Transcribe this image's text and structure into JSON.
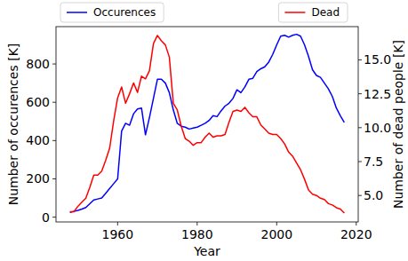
{
  "chart_data": {
    "type": "line",
    "x_label": "Year",
    "y_label": "Number of occurences [K]",
    "y2_label": "Number of dead people [K]",
    "x": [
      1948,
      1949,
      1950,
      1951,
      1952,
      1953,
      1954,
      1955,
      1956,
      1957,
      1958,
      1959,
      1960,
      1961,
      1962,
      1963,
      1964,
      1965,
      1966,
      1967,
      1968,
      1969,
      1970,
      1971,
      1972,
      1973,
      1974,
      1975,
      1976,
      1977,
      1978,
      1979,
      1980,
      1981,
      1982,
      1983,
      1984,
      1985,
      1986,
      1987,
      1988,
      1989,
      1990,
      1991,
      1992,
      1993,
      1994,
      1995,
      1996,
      1997,
      1998,
      1999,
      2000,
      2001,
      2002,
      2003,
      2004,
      2005,
      2006,
      2007,
      2008,
      2009,
      2010,
      2011,
      2012,
      2013,
      2014,
      2015,
      2016,
      2017
    ],
    "series": [
      {
        "name": "Occurences",
        "color": "#0000ff",
        "values": [
          25,
          30,
          35,
          42,
          50,
          70,
          90,
          95,
          100,
          125,
          150,
          175,
          200,
          450,
          490,
          480,
          540,
          565,
          570,
          430,
          520,
          620,
          720,
          720,
          700,
          650,
          560,
          490,
          475,
          470,
          460,
          465,
          470,
          480,
          490,
          505,
          530,
          525,
          555,
          580,
          595,
          620,
          665,
          650,
          680,
          720,
          725,
          760,
          775,
          785,
          810,
          850,
          900,
          945,
          950,
          940,
          950,
          955,
          945,
          900,
          840,
          770,
          740,
          730,
          700,
          670,
          630,
          570,
          530,
          495
        ]
      },
      {
        "name": "Dead",
        "color": "#ff0000",
        "axis": "y2",
        "values": [
          3.8,
          3.8,
          4.2,
          4.5,
          4.8,
          5.6,
          6.5,
          6.5,
          6.8,
          7.6,
          8.5,
          10.5,
          12.2,
          13.0,
          11.8,
          12.5,
          13.3,
          12.6,
          13.8,
          13.6,
          14.2,
          16.2,
          16.8,
          16.4,
          16.1,
          15.2,
          11.8,
          11.3,
          10.1,
          9.2,
          9.0,
          8.7,
          8.9,
          8.9,
          9.3,
          9.6,
          9.3,
          9.4,
          9.4,
          9.5,
          10.4,
          11.2,
          11.3,
          11.2,
          11.5,
          11.1,
          10.8,
          10.8,
          10.2,
          9.9,
          9.6,
          9.5,
          9.5,
          9.2,
          8.8,
          8.2,
          7.9,
          7.4,
          6.9,
          6.2,
          5.4,
          5.1,
          5.0,
          4.8,
          4.7,
          4.4,
          4.3,
          4.1,
          4.0,
          3.7
        ]
      }
    ],
    "xlim": [
      1944.5,
      2020.5
    ],
    "xticks": [
      1960,
      1980,
      2000,
      2020
    ],
    "ylim": [
      -25,
      995
    ],
    "yticks": [
      0,
      200,
      400,
      600,
      800
    ],
    "y2lim": [
      3.05,
      17.45
    ],
    "y2ticks": [
      {
        "value": 5,
        "label": "5.0"
      },
      7.5,
      {
        "value": 10,
        "label": "10.0"
      },
      12.5,
      {
        "value": 15,
        "label": "15.0"
      }
    ],
    "legend": "top",
    "grid": false
  }
}
